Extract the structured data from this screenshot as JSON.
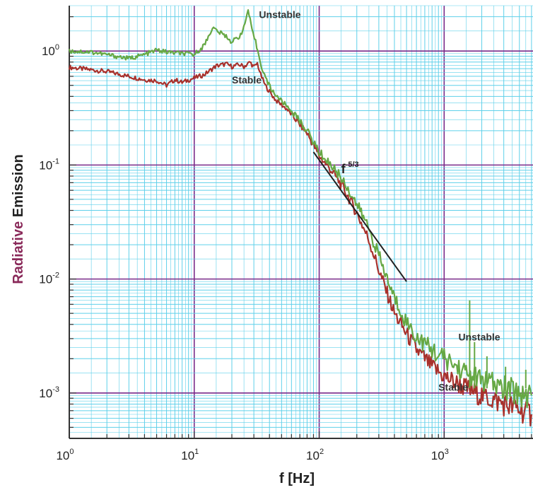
{
  "chart_data": {
    "type": "line",
    "xlabel": "f [Hz]",
    "ylabel_parts": [
      "Radiative ",
      "Emission"
    ],
    "x_scale": "log",
    "y_scale": "log",
    "xlim": [
      1,
      5000
    ],
    "ylim": [
      0.0004,
      2.5
    ],
    "grid": true,
    "x_ticks": [
      {
        "base": "10",
        "exp": "0"
      },
      {
        "base": "10",
        "exp": "1"
      },
      {
        "base": "10",
        "exp": "2"
      },
      {
        "base": "10",
        "exp": "3"
      }
    ],
    "y_ticks": [
      {
        "base": "10",
        "exp": "0"
      },
      {
        "base": "10",
        "exp": "-1"
      },
      {
        "base": "10",
        "exp": "-2"
      },
      {
        "base": "10",
        "exp": "-3"
      }
    ],
    "series": [
      {
        "name": "Unstable",
        "color": "#66a844",
        "points": [
          [
            1,
            1.0
          ],
          [
            1.5,
            0.98
          ],
          [
            2,
            0.93
          ],
          [
            3,
            0.86
          ],
          [
            4,
            0.93
          ],
          [
            5,
            1.02
          ],
          [
            6,
            0.98
          ],
          [
            8,
            0.95
          ],
          [
            10,
            0.93
          ],
          [
            12,
            1.12
          ],
          [
            14,
            1.6
          ],
          [
            16,
            1.45
          ],
          [
            18,
            1.35
          ],
          [
            20,
            1.2
          ],
          [
            23,
            1.35
          ],
          [
            25,
            1.6
          ],
          [
            27,
            2.3
          ],
          [
            29,
            1.5
          ],
          [
            31,
            1.2
          ],
          [
            33,
            0.9
          ],
          [
            35,
            0.7
          ],
          [
            38,
            0.55
          ],
          [
            42,
            0.45
          ],
          [
            48,
            0.38
          ],
          [
            55,
            0.33
          ],
          [
            65,
            0.27
          ],
          [
            80,
            0.2
          ],
          [
            100,
            0.13
          ],
          [
            130,
            0.095
          ],
          [
            160,
            0.07
          ],
          [
            200,
            0.045
          ],
          [
            250,
            0.028
          ],
          [
            300,
            0.016
          ],
          [
            350,
            0.01
          ],
          [
            400,
            0.0068
          ],
          [
            500,
            0.0042
          ],
          [
            600,
            0.0031
          ],
          [
            800,
            0.0024
          ],
          [
            1000,
            0.002
          ],
          [
            1500,
            0.0015
          ],
          [
            2000,
            0.0013
          ],
          [
            3000,
            0.0011
          ],
          [
            4000,
            0.001
          ],
          [
            5000,
            0.00095
          ]
        ]
      },
      {
        "name": "Stable",
        "color": "#a8312c",
        "points": [
          [
            1,
            0.72
          ],
          [
            2,
            0.66
          ],
          [
            3,
            0.6
          ],
          [
            4,
            0.56
          ],
          [
            5,
            0.55
          ],
          [
            6,
            0.5
          ],
          [
            7,
            0.56
          ],
          [
            8,
            0.53
          ],
          [
            10,
            0.58
          ],
          [
            12,
            0.62
          ],
          [
            15,
            0.74
          ],
          [
            18,
            0.77
          ],
          [
            20,
            0.73
          ],
          [
            23,
            0.76
          ],
          [
            25,
            0.73
          ],
          [
            28,
            0.8
          ],
          [
            30,
            0.72
          ],
          [
            32,
            0.78
          ],
          [
            34,
            0.62
          ],
          [
            37,
            0.5
          ],
          [
            40,
            0.44
          ],
          [
            45,
            0.37
          ],
          [
            55,
            0.31
          ],
          [
            65,
            0.25
          ],
          [
            80,
            0.19
          ],
          [
            100,
            0.12
          ],
          [
            130,
            0.085
          ],
          [
            160,
            0.06
          ],
          [
            200,
            0.038
          ],
          [
            250,
            0.022
          ],
          [
            300,
            0.012
          ],
          [
            350,
            0.0075
          ],
          [
            400,
            0.005
          ],
          [
            500,
            0.0033
          ],
          [
            600,
            0.0024
          ],
          [
            800,
            0.0017
          ],
          [
            1000,
            0.0014
          ],
          [
            1500,
            0.0011
          ],
          [
            2000,
            0.00095
          ],
          [
            3000,
            0.0008
          ],
          [
            4000,
            0.00072
          ],
          [
            5000,
            0.00065
          ]
        ]
      }
    ],
    "reference_line": {
      "points": [
        [
          90,
          0.13
        ],
        [
          500,
          0.0095
        ]
      ],
      "label_base": "f",
      "label_exp": "-5/3",
      "color": "#222222"
    },
    "annotations": [
      {
        "text": "Unstable",
        "x": 33,
        "y": 1.95
      },
      {
        "text": "Stable",
        "x": 20,
        "y": 0.52
      },
      {
        "text": "Unstable",
        "x": 1300,
        "y": 0.0029
      },
      {
        "text": "Stable",
        "x": 900,
        "y": 0.00105
      }
    ],
    "spikes": [
      [
        1600,
        0.0065
      ],
      [
        1750,
        0.0028
      ],
      [
        2200,
        0.0021
      ],
      [
        3100,
        0.0017
      ],
      [
        4500,
        0.0016
      ]
    ]
  }
}
